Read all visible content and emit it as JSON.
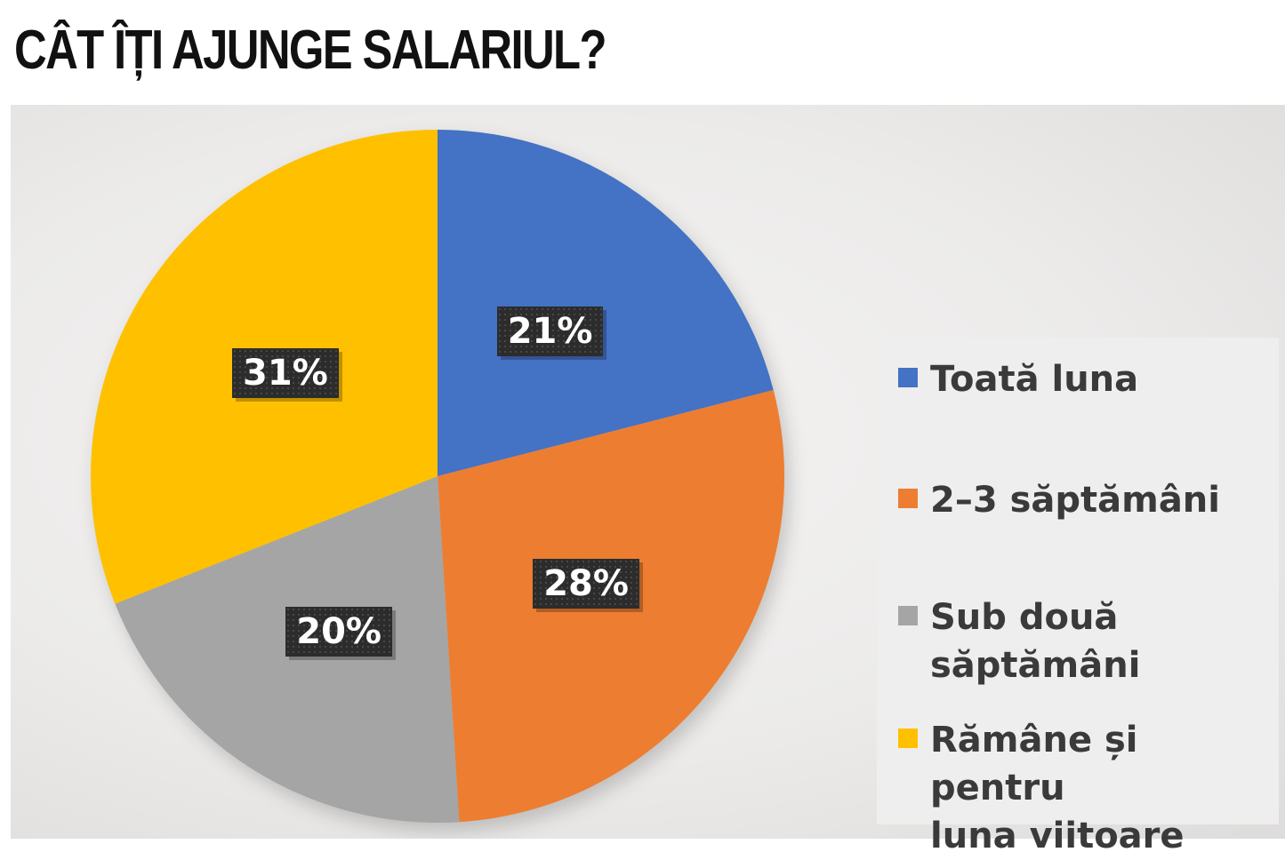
{
  "title": "CÂT ÎȚI AJUNGE SALARIUL?",
  "chart_data": {
    "type": "pie",
    "title": "CÂT ÎȚI AJUNGE SALARIUL?",
    "slices": [
      {
        "label": "Toată luna",
        "value": 21,
        "display": "21%",
        "color": "#4472c4"
      },
      {
        "label": "2–3 săptămâni",
        "value": 28,
        "display": "28%",
        "color": "#ed7d31"
      },
      {
        "label": "Sub două săptămâni",
        "value": 20,
        "display": "20%",
        "color": "#a5a5a5"
      },
      {
        "label": "Rămâne și pentru luna viitoare",
        "value": 31,
        "display": "31%",
        "color": "#ffc000"
      }
    ],
    "legend": {
      "placement": "right",
      "items": [
        {
          "lines": [
            "Toată luna"
          ],
          "color": "#4472c4"
        },
        {
          "lines": [
            "2–3 săptămâni"
          ],
          "color": "#ed7d31"
        },
        {
          "lines": [
            "Sub două",
            "săptămâni"
          ],
          "color": "#a5a5a5"
        },
        {
          "lines": [
            "Rămâne și pentru",
            "luna viitoare"
          ],
          "color": "#ffc000"
        }
      ]
    }
  }
}
